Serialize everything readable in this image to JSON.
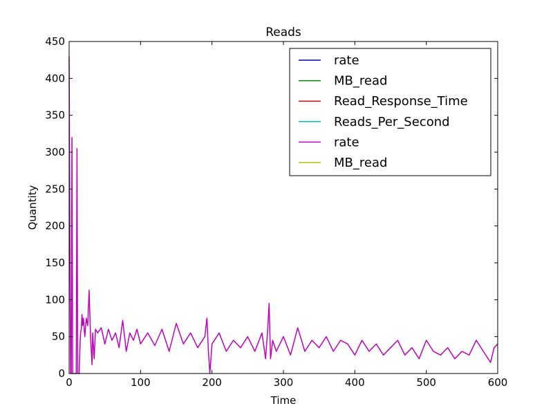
{
  "chart_data": {
    "type": "line",
    "title": "Reads",
    "xlabel": "Time",
    "ylabel": "Quantity",
    "xlim": [
      0,
      600
    ],
    "ylim": [
      0,
      450
    ],
    "xticks": [
      0,
      100,
      200,
      300,
      400,
      500,
      600
    ],
    "yticks": [
      0,
      50,
      100,
      150,
      200,
      250,
      300,
      350,
      400,
      450
    ],
    "legend_position": "top-right",
    "series": [
      {
        "name": "rate",
        "color": "#0000bf",
        "x": [],
        "values": []
      },
      {
        "name": "MB_read",
        "color": "#008000",
        "x": [],
        "values": []
      },
      {
        "name": "Read_Response_Time",
        "color": "#ff0000",
        "x": [],
        "values": []
      },
      {
        "name": "Reads_Per_Second",
        "color": "#00bfbf",
        "x": [],
        "values": []
      },
      {
        "name": "rate",
        "color": "#bf00bf",
        "x": [
          0,
          1,
          2,
          3,
          4,
          5,
          6,
          7,
          8,
          9,
          10,
          11,
          12,
          13,
          14,
          15,
          16,
          17,
          18,
          19,
          20,
          22,
          24,
          26,
          28,
          30,
          32,
          33,
          35,
          37,
          40,
          45,
          50,
          55,
          60,
          65,
          70,
          75,
          80,
          85,
          90,
          95,
          100,
          110,
          120,
          130,
          140,
          150,
          160,
          170,
          180,
          190,
          193,
          195,
          197,
          200,
          210,
          220,
          230,
          240,
          250,
          260,
          270,
          275,
          278,
          280,
          282,
          285,
          290,
          300,
          310,
          320,
          330,
          340,
          350,
          360,
          370,
          380,
          390,
          400,
          410,
          420,
          430,
          440,
          450,
          460,
          470,
          480,
          490,
          500,
          510,
          520,
          530,
          540,
          550,
          560,
          570,
          580,
          590,
          595,
          600
        ],
        "values": [
          430,
          200,
          0,
          0,
          320,
          0,
          0,
          0,
          0,
          0,
          0,
          305,
          0,
          0,
          0,
          30,
          55,
          60,
          80,
          65,
          75,
          50,
          75,
          65,
          113,
          50,
          12,
          55,
          20,
          60,
          55,
          62,
          40,
          60,
          45,
          55,
          35,
          72,
          30,
          55,
          45,
          60,
          40,
          55,
          38,
          60,
          30,
          68,
          40,
          55,
          35,
          50,
          75,
          30,
          0,
          40,
          55,
          30,
          45,
          35,
          50,
          30,
          55,
          20,
          60,
          95,
          20,
          45,
          30,
          50,
          25,
          62,
          30,
          45,
          35,
          50,
          30,
          45,
          40,
          25,
          45,
          30,
          40,
          25,
          35,
          45,
          25,
          35,
          20,
          45,
          30,
          25,
          35,
          20,
          30,
          25,
          45,
          30,
          15,
          35,
          40
        ]
      },
      {
        "name": "MB_read",
        "color": "#bfbf00",
        "x": [],
        "values": []
      }
    ]
  }
}
